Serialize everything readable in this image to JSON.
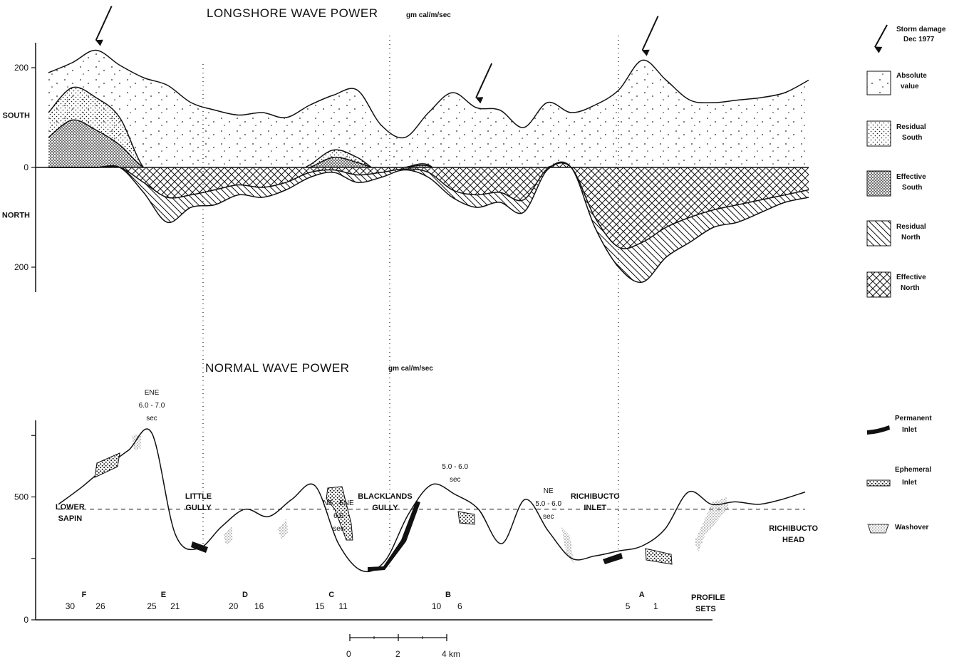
{
  "chart_data": [
    {
      "type": "area",
      "title": "LONGSHORE WAVE POWER",
      "unit": "gm cal/m/sec",
      "y_ticks": [
        {
          "value": 200,
          "label": "200"
        },
        {
          "value": 0,
          "label": "0"
        },
        {
          "value": -200,
          "label": "200"
        }
      ],
      "direction_labels": [
        {
          "value": 105,
          "label": "SOUTH"
        },
        {
          "value": -95,
          "label": "NORTH"
        }
      ],
      "ylim": [
        -250,
        250
      ],
      "x_range_km": [
        0,
        32
      ],
      "x_km": [
        0,
        1,
        2,
        3,
        4,
        5,
        6,
        7,
        8,
        9,
        10,
        11,
        12,
        13,
        14,
        15,
        16,
        17,
        18,
        19,
        20,
        21,
        22,
        23,
        24,
        25,
        26,
        27,
        28,
        29,
        30,
        31,
        32
      ],
      "series": [
        {
          "name": "Absolute value",
          "values": [
            190,
            210,
            235,
            205,
            180,
            165,
            130,
            115,
            105,
            110,
            100,
            125,
            145,
            155,
            85,
            60,
            110,
            150,
            120,
            115,
            80,
            130,
            110,
            125,
            155,
            215,
            175,
            135,
            130,
            135,
            140,
            150,
            175
          ]
        },
        {
          "name": "Residual South",
          "values": [
            110,
            160,
            140,
            100,
            0,
            -20,
            -45,
            -40,
            -30,
            -35,
            -20,
            5,
            35,
            20,
            -10,
            0,
            5,
            -40,
            -35,
            -45,
            -30,
            0,
            0,
            -85,
            -200,
            -160,
            -100,
            -80,
            -60,
            -50,
            -45,
            -40,
            -30
          ]
        },
        {
          "name": "Effective South",
          "values": [
            60,
            95,
            75,
            45,
            0,
            -15,
            -20,
            -25,
            -20,
            -20,
            -15,
            0,
            20,
            10,
            -5,
            0,
            3,
            -25,
            -20,
            -30,
            -20,
            0,
            0,
            -60,
            -160,
            -130,
            -80,
            -60,
            -50,
            -40,
            -35,
            -30,
            -20
          ]
        },
        {
          "name": "Residual North",
          "values": [
            0,
            0,
            0,
            0,
            -50,
            -110,
            -80,
            -75,
            -55,
            -60,
            -45,
            -20,
            -10,
            -30,
            -20,
            -5,
            -20,
            -60,
            -80,
            -70,
            -90,
            -5,
            0,
            -120,
            -200,
            -230,
            -180,
            -150,
            -120,
            -110,
            -90,
            -70,
            -60
          ]
        },
        {
          "name": "Effective North",
          "values": [
            0,
            0,
            0,
            0,
            -30,
            -60,
            -55,
            -45,
            -35,
            -40,
            -30,
            -10,
            -5,
            -15,
            -10,
            -3,
            -10,
            -45,
            -55,
            -50,
            -65,
            -3,
            0,
            -100,
            -160,
            -150,
            -120,
            -100,
            -85,
            -75,
            -65,
            -55,
            -45
          ]
        }
      ],
      "annotations": [
        {
          "x_km": 2,
          "label": "arrow"
        },
        {
          "x_km": 18,
          "label": "arrow"
        },
        {
          "x_km": 25,
          "label": "arrow"
        }
      ]
    },
    {
      "type": "line",
      "title": "NORMAL WAVE POWER",
      "unit": "gm cal/m/sec",
      "y_ticks": [
        {
          "value": 0,
          "label": "0"
        },
        {
          "value": 500,
          "label": "500"
        }
      ],
      "ylim": [
        0,
        800
      ],
      "mean_line": 450,
      "x_km": [
        0,
        1,
        2,
        3,
        4,
        5,
        6,
        7,
        8,
        9,
        10,
        11,
        12,
        13,
        14,
        15,
        16,
        17,
        18,
        19,
        20,
        21,
        22,
        23,
        24,
        25,
        26,
        27,
        28,
        29,
        30,
        31,
        32
      ],
      "values": [
        470,
        540,
        620,
        690,
        760,
        350,
        290,
        380,
        450,
        420,
        490,
        545,
        310,
        200,
        240,
        430,
        550,
        510,
        450,
        310,
        490,
        360,
        250,
        260,
        280,
        300,
        370,
        520,
        470,
        480,
        470,
        490,
        520
      ],
      "wave_conditions": [
        {
          "lines": [
            "ENE",
            "6.0 - 7.0",
            "sec"
          ],
          "x_km": 4
        },
        {
          "lines": [
            "NE - ENE",
            "6.0",
            "sec"
          ],
          "x_km": 12
        },
        {
          "lines": [
            "5.0 - 6.0",
            "sec"
          ],
          "x_km": 17
        },
        {
          "lines": [
            "NE",
            "5.0 - 6.0",
            "sec"
          ],
          "x_km": 21
        }
      ],
      "places": [
        {
          "lines": [
            "LOWER",
            "SAPIN"
          ],
          "x_km": 0.5
        },
        {
          "lines": [
            "LITTLE",
            "GULLY"
          ],
          "x_km": 6
        },
        {
          "lines": [
            "BLACKLANDS",
            "GULLY"
          ],
          "x_km": 14
        },
        {
          "lines": [
            "RICHIBUCTO",
            "INLET"
          ],
          "x_km": 23
        },
        {
          "lines": [
            "RICHIBUCTO",
            "HEAD"
          ],
          "x_km": 31.5
        }
      ],
      "profile_numbers": [
        {
          "label": "30",
          "x_km": 0.5
        },
        {
          "label": "26",
          "x_km": 1.8
        },
        {
          "label": "25",
          "x_km": 4
        },
        {
          "label": "21",
          "x_km": 5
        },
        {
          "label": "20",
          "x_km": 7.5
        },
        {
          "label": "16",
          "x_km": 8.6
        },
        {
          "label": "15",
          "x_km": 11.2
        },
        {
          "label": "11",
          "x_km": 12.2
        },
        {
          "label": "10",
          "x_km": 16.2
        },
        {
          "label": "6",
          "x_km": 17.2
        },
        {
          "label": "5",
          "x_km": 24.4
        },
        {
          "label": "1",
          "x_km": 25.6
        }
      ],
      "profile_set_letters": [
        {
          "label": "F",
          "x_km": 1.1
        },
        {
          "label": "E",
          "x_km": 4.5
        },
        {
          "label": "D",
          "x_km": 8
        },
        {
          "label": "C",
          "x_km": 11.7
        },
        {
          "label": "B",
          "x_km": 16.7
        },
        {
          "label": "A",
          "x_km": 25
        }
      ],
      "profile_sets_label": [
        "PROFILE",
        "SETS"
      ],
      "scale_bar": {
        "ticks": [
          "0",
          "2",
          "4 km"
        ],
        "length_km": 4
      }
    }
  ],
  "legend_top": [
    {
      "key": "storm",
      "lines": [
        "Storm damage",
        "Dec 1977"
      ]
    },
    {
      "key": "absolute",
      "lines": [
        "Absolute",
        "value"
      ]
    },
    {
      "key": "residual_south",
      "lines": [
        "Residual",
        "South"
      ]
    },
    {
      "key": "effective_south",
      "lines": [
        "Effective",
        "South"
      ]
    },
    {
      "key": "residual_north",
      "lines": [
        "Residual",
        "North"
      ]
    },
    {
      "key": "effective_north",
      "lines": [
        "Effective",
        "North"
      ]
    }
  ],
  "legend_bottom": [
    {
      "key": "permanent",
      "lines": [
        "Permanent",
        "Inlet"
      ]
    },
    {
      "key": "ephemeral",
      "lines": [
        "Ephemeral",
        "Inlet"
      ]
    },
    {
      "key": "washover",
      "lines": [
        "Washover"
      ]
    }
  ]
}
